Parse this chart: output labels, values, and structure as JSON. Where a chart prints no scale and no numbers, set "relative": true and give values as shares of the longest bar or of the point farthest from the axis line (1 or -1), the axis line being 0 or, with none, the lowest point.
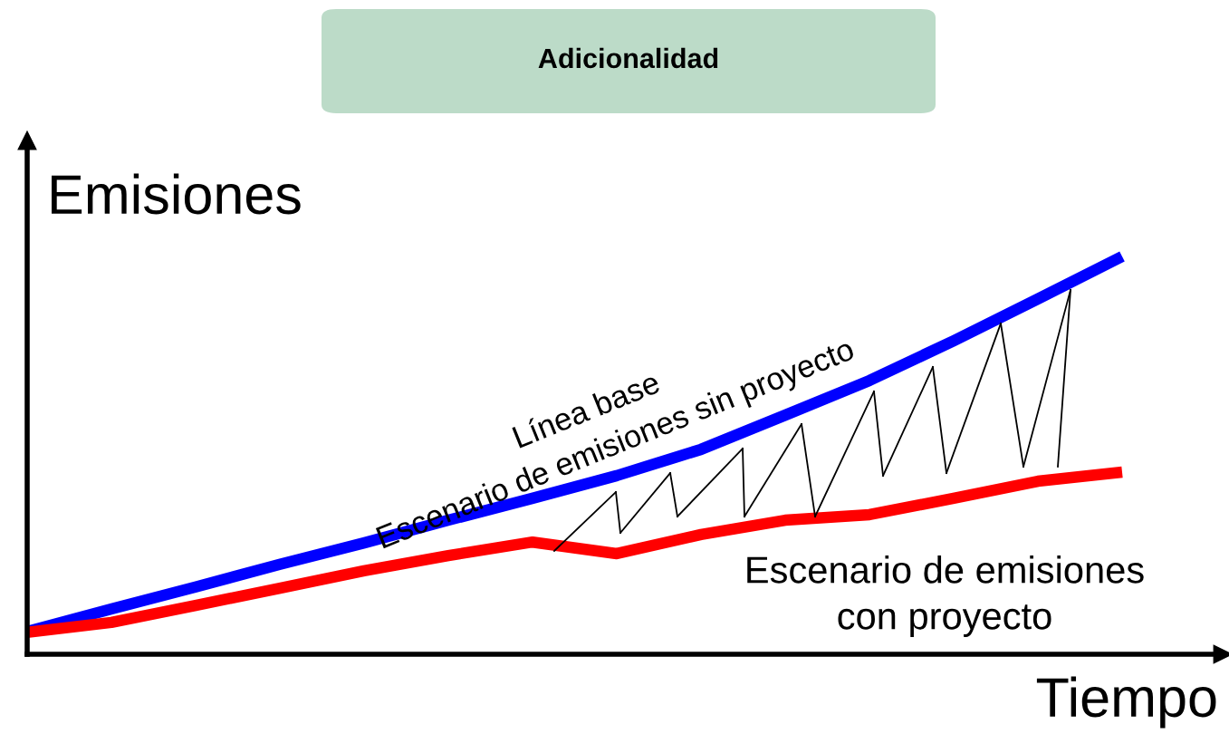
{
  "chart_data": {
    "type": "line",
    "title": "Adicionalidad",
    "xlabel": "Tiempo",
    "ylabel": "Emisiones",
    "relative": true,
    "categories": [
      null,
      null,
      null,
      null,
      null,
      null,
      null,
      null,
      null,
      null,
      null,
      null,
      null,
      null
    ],
    "series": [
      {
        "name": "Escenario de emisiones sin proyecto",
        "color": "#0000ff",
        "values": [
          0.057,
          0.114,
          0.169,
          0.226,
          0.28,
          0.337,
          0.392,
          0.449,
          0.515,
          0.601,
          0.688,
          0.788,
          0.893,
          1
        ]
      },
      {
        "name": "Escenario de emisiones\ncon proyecto",
        "color": "#ff0000",
        "values": [
          0.055,
          0.08,
          0.123,
          0.166,
          0.21,
          0.248,
          0.282,
          0.253,
          0.301,
          0.337,
          0.351,
          0.392,
          0.435,
          0.458
        ]
      }
    ],
    "annotations": [
      "Línea base"
    ]
  }
}
